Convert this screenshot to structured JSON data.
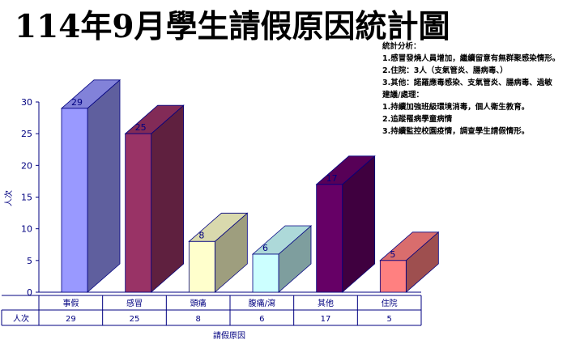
{
  "title": "114年9月學生請假原因統計圖",
  "notes": [
    "統計分析：",
    "1.感冒發燒人員增加，繼續留意有無群聚感染情形。",
    "2.住院：3人（支氣管炎、腸病毒、）",
    "3.其他：諾羅應毒感染、支氣管炎、腸病毒、過敏",
    "建議/處理：",
    "1.持續加強班級環境消毒，個人衛生教育。",
    "2.追蹤罹病學童病情",
    "3.持續監控校園疫情，調查學生請假情形。"
  ],
  "chart_data": {
    "type": "bar",
    "title": "114年9月學生請假原因統計圖",
    "xlabel": "請假原因",
    "ylabel": "人次",
    "categories": [
      "事假",
      "感冒",
      "頭痛",
      "腹痛/瀉",
      "其他",
      "住院"
    ],
    "series": [
      {
        "name": "人次",
        "values": [
          29,
          25,
          8,
          6,
          17,
          5
        ],
        "colors": [
          "#9999ff",
          "#993366",
          "#ffffcc",
          "#ccffff",
          "#660066",
          "#ff8080"
        ]
      }
    ],
    "ylim": [
      0,
      30
    ],
    "yticks": [
      "0",
      "5",
      "10",
      "15",
      "20",
      "25",
      "30"
    ],
    "data_labels": [
      "29",
      "25",
      "8",
      "6",
      "17",
      "5"
    ],
    "grid": false,
    "three_d": true,
    "data_table": {
      "row_header": "人次",
      "values": [
        "29",
        "25",
        "8",
        "6",
        "17",
        "5"
      ]
    }
  }
}
